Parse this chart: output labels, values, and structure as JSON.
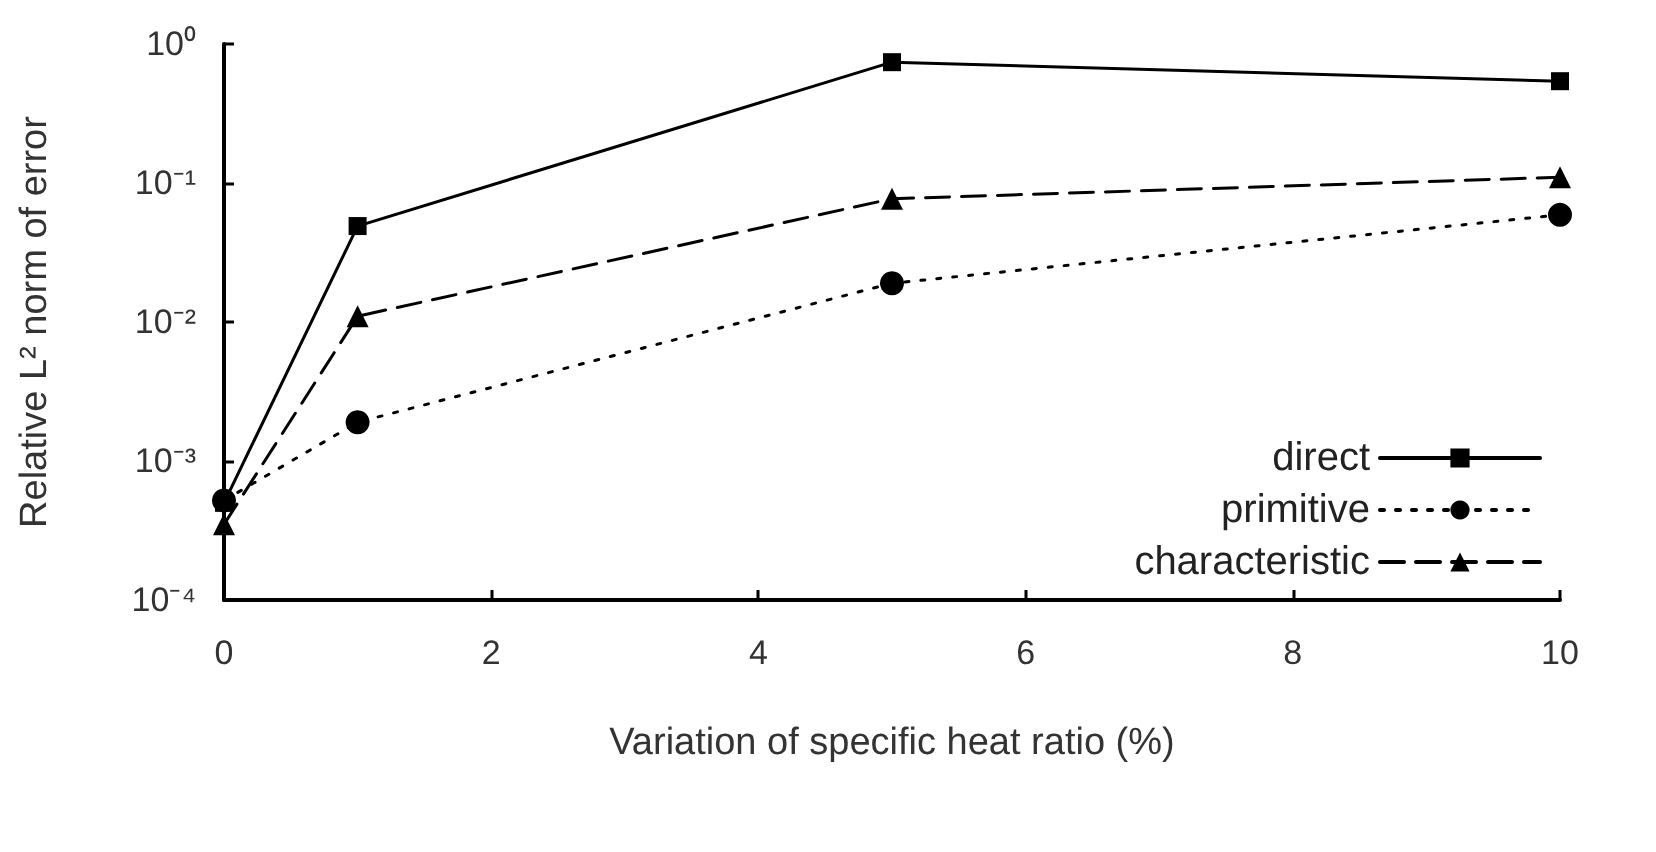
{
  "chart_data": {
    "type": "line",
    "xlabel": "Variation of specific heat ratio (%)",
    "ylabel": "Relative L² norm of error",
    "x": [
      0,
      1,
      5,
      10
    ],
    "series": [
      {
        "name": "direct",
        "color": "#000000",
        "marker": "square",
        "line_style": "solid",
        "values": [
          0.0005,
          0.049,
          0.74,
          0.54
        ]
      },
      {
        "name": "primitive",
        "color": "#000000",
        "marker": "circle",
        "line_style": "dotted",
        "values": [
          0.00052,
          0.0019,
          0.019,
          0.059
        ]
      },
      {
        "name": "characteristic",
        "color": "#000000",
        "marker": "triangle",
        "line_style": "dashed",
        "values": [
          0.00035,
          0.011,
          0.077,
          0.11
        ]
      }
    ],
    "xlim": [
      0,
      10
    ],
    "xticks": [
      0,
      2,
      4,
      6,
      8,
      10
    ],
    "ylim": [
      0.0001,
      1
    ],
    "log": "y",
    "yticks": [
      {
        "value": 0.0001,
        "label": "10⁻⁴"
      },
      {
        "value": 0.001,
        "label": "10⁻³"
      },
      {
        "value": 0.01,
        "label": "10⁻²"
      },
      {
        "value": 0.1,
        "label": "10⁻¹"
      },
      {
        "value": 1,
        "label": "10⁰"
      }
    ],
    "grid": false,
    "legend": "bottom right"
  }
}
